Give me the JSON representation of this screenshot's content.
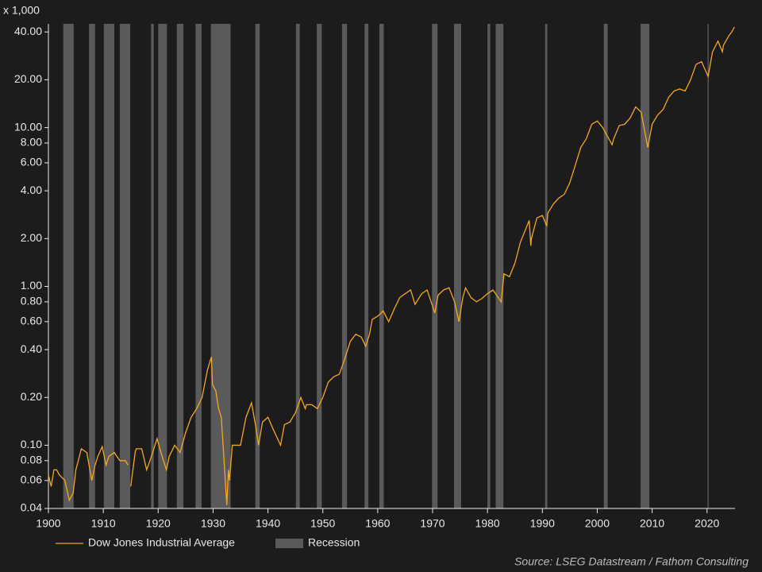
{
  "chart_data": {
    "type": "line",
    "unit_label": "x 1,000",
    "source": "Source: LSEG Datastream / Fathom Consulting",
    "log_y": true,
    "xlim": [
      1900,
      2025.1
    ],
    "xticks": [
      1900,
      1910,
      1920,
      1930,
      1940,
      1950,
      1960,
      1970,
      1980,
      1990,
      2000,
      2010,
      2020
    ],
    "ylim": [
      0.04,
      45
    ],
    "yticks": [
      0.04,
      0.06,
      0.08,
      {
        "value": 0.1,
        "label": "0.10"
      },
      {
        "value": 0.2,
        "label": "0.20"
      },
      {
        "value": 0.4,
        "label": "0.40"
      },
      {
        "value": 0.6,
        "label": "0.60"
      },
      {
        "value": 0.8,
        "label": "0.80"
      },
      {
        "value": 1,
        "label": "1.00"
      },
      {
        "value": 2,
        "label": "2.00"
      },
      {
        "value": 4,
        "label": "4.00"
      },
      {
        "value": 6,
        "label": "6.00"
      },
      {
        "value": 8,
        "label": "8.00"
      },
      {
        "value": 10,
        "label": "10.00"
      },
      {
        "value": 20,
        "label": "20.00"
      },
      {
        "value": 40,
        "label": "40.00"
      }
    ],
    "x": [
      1900,
      1900.5,
      1901,
      1901.5,
      1902,
      1903,
      1903.8,
      1904.5,
      1905,
      1906,
      1907,
      1907.9,
      1908.5,
      1909,
      1909.8,
      1910.5,
      1911,
      1912,
      1913,
      1914,
      1914.5,
      1914.8,
      1915,
      1915.8,
      1916,
      1917,
      1917.9,
      1918.5,
      1919,
      1919.8,
      1920.5,
      1921.5,
      1922,
      1923,
      1924,
      1925,
      1926,
      1927,
      1928,
      1929,
      1929.7,
      1929.9,
      1930.5,
      1931,
      1931.5,
      1932,
      1932.5,
      1932.8,
      1933,
      1933.5,
      1934,
      1935,
      1936,
      1937,
      1937.8,
      1938.3,
      1939,
      1940,
      1941,
      1942.3,
      1943,
      1944,
      1945,
      1946,
      1946.8,
      1947,
      1948,
      1949,
      1950,
      1951,
      1952,
      1953,
      1954,
      1955,
      1956,
      1957,
      1957.8,
      1958.5,
      1959,
      1960,
      1961,
      1962,
      1963,
      1964,
      1965,
      1966,
      1966.8,
      1968,
      1969,
      1970.4,
      1971,
      1972,
      1973,
      1974,
      1974.8,
      1975.5,
      1976,
      1977,
      1978,
      1979,
      1980,
      1981,
      1982.5,
      1983,
      1984,
      1985,
      1986,
      1987.6,
      1987.9,
      1988,
      1989,
      1990,
      1990.8,
      1991,
      1992,
      1993,
      1994,
      1995,
      1996,
      1997,
      1998,
      1999,
      2000,
      2001,
      2002.7,
      2003,
      2004,
      2005,
      2006,
      2007,
      2008,
      2009.2,
      2010,
      2011,
      2012,
      2013,
      2014,
      2015,
      2016,
      2017,
      2018,
      2019,
      2020.2,
      2021,
      2022,
      2022.8,
      2023,
      2024,
      2024.5,
      2025
    ],
    "series": [
      {
        "name": "Dow Jones Industrial Average",
        "color": "#f5a623",
        "values": [
          0.065,
          0.055,
          0.07,
          0.07,
          0.065,
          0.06,
          0.045,
          0.05,
          0.07,
          0.095,
          0.09,
          0.06,
          0.075,
          0.085,
          0.098,
          0.075,
          0.085,
          0.09,
          0.08,
          0.08,
          0.075,
          null,
          0.055,
          0.09,
          0.095,
          0.095,
          0.07,
          0.08,
          0.09,
          0.11,
          0.09,
          0.07,
          0.085,
          0.1,
          0.09,
          0.12,
          0.15,
          0.17,
          0.2,
          0.3,
          0.36,
          0.24,
          0.22,
          0.17,
          0.15,
          0.08,
          0.042,
          0.07,
          0.06,
          0.1,
          0.1,
          0.1,
          0.15,
          0.185,
          0.13,
          0.1,
          0.14,
          0.15,
          0.125,
          0.1,
          0.135,
          0.14,
          0.16,
          0.2,
          0.17,
          0.18,
          0.18,
          0.17,
          0.2,
          0.25,
          0.27,
          0.28,
          0.35,
          0.45,
          0.5,
          0.48,
          0.42,
          0.5,
          0.62,
          0.65,
          0.7,
          0.6,
          0.72,
          0.85,
          0.9,
          0.95,
          0.77,
          0.9,
          0.95,
          0.68,
          0.88,
          0.95,
          0.98,
          0.8,
          0.6,
          0.85,
          0.98,
          0.85,
          0.8,
          0.84,
          0.9,
          0.95,
          0.8,
          1.2,
          1.15,
          1.4,
          1.9,
          2.6,
          1.8,
          2.0,
          2.7,
          2.8,
          2.4,
          2.9,
          3.3,
          3.6,
          3.8,
          4.5,
          5.8,
          7.5,
          8.5,
          10.5,
          11.0,
          10.0,
          7.8,
          8.5,
          10.3,
          10.5,
          11.5,
          13.5,
          12.5,
          7.5,
          10.5,
          12,
          13,
          15.5,
          17,
          17.5,
          17,
          20,
          25,
          26,
          21,
          30,
          35,
          30,
          33,
          38,
          40,
          43
        ]
      }
    ],
    "shading": {
      "name": "Recession",
      "color": "#5a5a5a",
      "ranges": [
        [
          1902.7,
          1904.6
        ],
        [
          1907.4,
          1908.5
        ],
        [
          1910.1,
          1912.0
        ],
        [
          1913.0,
          1914.9
        ],
        [
          1918.7,
          1919.2
        ],
        [
          1920.0,
          1921.6
        ],
        [
          1923.4,
          1924.6
        ],
        [
          1926.8,
          1927.9
        ],
        [
          1929.6,
          1933.2
        ],
        [
          1937.7,
          1938.5
        ],
        [
          1945.1,
          1945.8
        ],
        [
          1948.9,
          1949.8
        ],
        [
          1953.5,
          1954.4
        ],
        [
          1957.6,
          1958.3
        ],
        [
          1960.3,
          1961.1
        ],
        [
          1969.9,
          1970.9
        ],
        [
          1973.9,
          1975.2
        ],
        [
          1980.0,
          1980.5
        ],
        [
          1981.5,
          1982.9
        ],
        [
          1990.5,
          1990.9
        ],
        [
          2001.2,
          2001.9
        ],
        [
          2007.9,
          2009.5
        ],
        [
          2020.1,
          2020.3
        ]
      ]
    }
  }
}
